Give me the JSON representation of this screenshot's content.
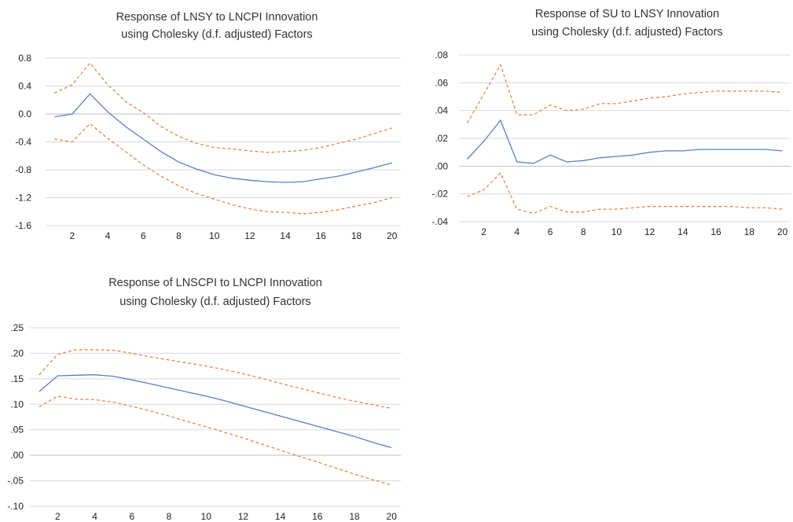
{
  "colors": {
    "response": "#5b7fc3",
    "band": "#e67e3a",
    "grid": "#d9d9d9"
  },
  "chart_data": [
    {
      "type": "line",
      "title_line1": "Response of LNSY to LNCPI Innovation",
      "title_line2": "using Cholesky (d.f. adjusted) Factors",
      "x": [
        1,
        2,
        3,
        4,
        5,
        6,
        7,
        8,
        9,
        10,
        11,
        12,
        13,
        14,
        15,
        16,
        17,
        18,
        19,
        20
      ],
      "xticks": [
        2,
        4,
        6,
        8,
        10,
        12,
        14,
        16,
        18,
        20
      ],
      "xlim": [
        0.5,
        20.5
      ],
      "ylim": [
        -1.6,
        0.8
      ],
      "yticks": [
        0.8,
        0.4,
        0.0,
        -0.4,
        -0.8,
        -1.2,
        -1.6
      ],
      "ytick_labels": [
        "0.8",
        "0.4",
        "0.0",
        "-0.4",
        "-0.8",
        "-1.2",
        "-1.6"
      ],
      "grid": "horizontal",
      "series": [
        {
          "values": [
            -0.04,
            0.0,
            0.29,
            0.03,
            -0.18,
            -0.36,
            -0.54,
            -0.69,
            -0.79,
            -0.87,
            -0.92,
            -0.95,
            -0.97,
            -0.98,
            -0.97,
            -0.93,
            -0.89,
            -0.83,
            -0.77,
            -0.7
          ]
        },
        {
          "values": [
            0.3,
            0.42,
            0.73,
            0.42,
            0.18,
            0.02,
            -0.18,
            -0.32,
            -0.42,
            -0.48,
            -0.5,
            -0.53,
            -0.55,
            -0.54,
            -0.52,
            -0.48,
            -0.42,
            -0.36,
            -0.28,
            -0.2
          ]
        },
        {
          "values": [
            -0.36,
            -0.4,
            -0.14,
            -0.35,
            -0.54,
            -0.73,
            -0.89,
            -1.03,
            -1.14,
            -1.22,
            -1.3,
            -1.36,
            -1.4,
            -1.41,
            -1.43,
            -1.41,
            -1.37,
            -1.32,
            -1.27,
            -1.2
          ]
        }
      ]
    },
    {
      "type": "line",
      "title_line1": "Response of SU to LNSY Innovation",
      "title_line2": "using Cholesky (d.f. adjusted) Factors",
      "x": [
        1,
        2,
        3,
        4,
        5,
        6,
        7,
        8,
        9,
        10,
        11,
        12,
        13,
        14,
        15,
        16,
        17,
        18,
        19,
        20
      ],
      "xticks": [
        2,
        4,
        6,
        8,
        10,
        12,
        14,
        16,
        18,
        20
      ],
      "xlim": [
        0.5,
        20.5
      ],
      "ylim": [
        -0.04,
        0.08
      ],
      "yticks": [
        0.08,
        0.06,
        0.04,
        0.02,
        0.0,
        -0.02,
        -0.04
      ],
      "ytick_labels": [
        ".08",
        ".06",
        ".04",
        ".02",
        ".00",
        "-.02",
        "-.04"
      ],
      "grid": "horizontal",
      "series": [
        {
          "values": [
            0.005,
            0.018,
            0.033,
            0.003,
            0.002,
            0.008,
            0.003,
            0.004,
            0.006,
            0.007,
            0.008,
            0.01,
            0.011,
            0.011,
            0.012,
            0.012,
            0.012,
            0.012,
            0.012,
            0.011
          ]
        },
        {
          "values": [
            0.031,
            0.052,
            0.073,
            0.037,
            0.037,
            0.044,
            0.04,
            0.041,
            0.045,
            0.045,
            0.047,
            0.049,
            0.05,
            0.052,
            0.053,
            0.054,
            0.054,
            0.054,
            0.054,
            0.053
          ]
        },
        {
          "values": [
            -0.022,
            -0.017,
            -0.005,
            -0.031,
            -0.034,
            -0.029,
            -0.033,
            -0.033,
            -0.031,
            -0.031,
            -0.03,
            -0.029,
            -0.029,
            -0.029,
            -0.029,
            -0.029,
            -0.029,
            -0.03,
            -0.03,
            -0.031
          ]
        }
      ]
    },
    {
      "type": "line",
      "title_line1": "Response of LNSCPI to LNCPI Innovation",
      "title_line2": "using Cholesky (d.f. adjusted) Factors",
      "x": [
        1,
        2,
        3,
        4,
        5,
        6,
        7,
        8,
        9,
        10,
        11,
        12,
        13,
        14,
        15,
        16,
        17,
        18,
        19,
        20
      ],
      "xticks": [
        2,
        4,
        6,
        8,
        10,
        12,
        14,
        16,
        18,
        20
      ],
      "xlim": [
        0.5,
        20.5
      ],
      "ylim": [
        -0.1,
        0.25
      ],
      "yticks": [
        0.25,
        0.2,
        0.15,
        0.1,
        0.05,
        0.0,
        -0.05,
        -0.1
      ],
      "ytick_labels": [
        ".25",
        ".20",
        ".15",
        ".10",
        ".05",
        ".00",
        "-.05",
        "-.10"
      ],
      "grid": "horizontal",
      "series": [
        {
          "values": [
            0.125,
            0.156,
            0.157,
            0.158,
            0.155,
            0.148,
            0.14,
            0.132,
            0.124,
            0.116,
            0.107,
            0.097,
            0.087,
            0.077,
            0.067,
            0.057,
            0.047,
            0.037,
            0.025,
            0.015
          ]
        },
        {
          "values": [
            0.158,
            0.198,
            0.207,
            0.207,
            0.206,
            0.2,
            0.193,
            0.187,
            0.181,
            0.175,
            0.168,
            0.16,
            0.151,
            0.141,
            0.132,
            0.123,
            0.114,
            0.106,
            0.099,
            0.092
          ]
        },
        {
          "values": [
            0.095,
            0.116,
            0.11,
            0.109,
            0.104,
            0.096,
            0.087,
            0.077,
            0.066,
            0.056,
            0.045,
            0.034,
            0.022,
            0.01,
            -0.002,
            -0.013,
            -0.025,
            -0.037,
            -0.048,
            -0.058
          ]
        }
      ]
    }
  ]
}
